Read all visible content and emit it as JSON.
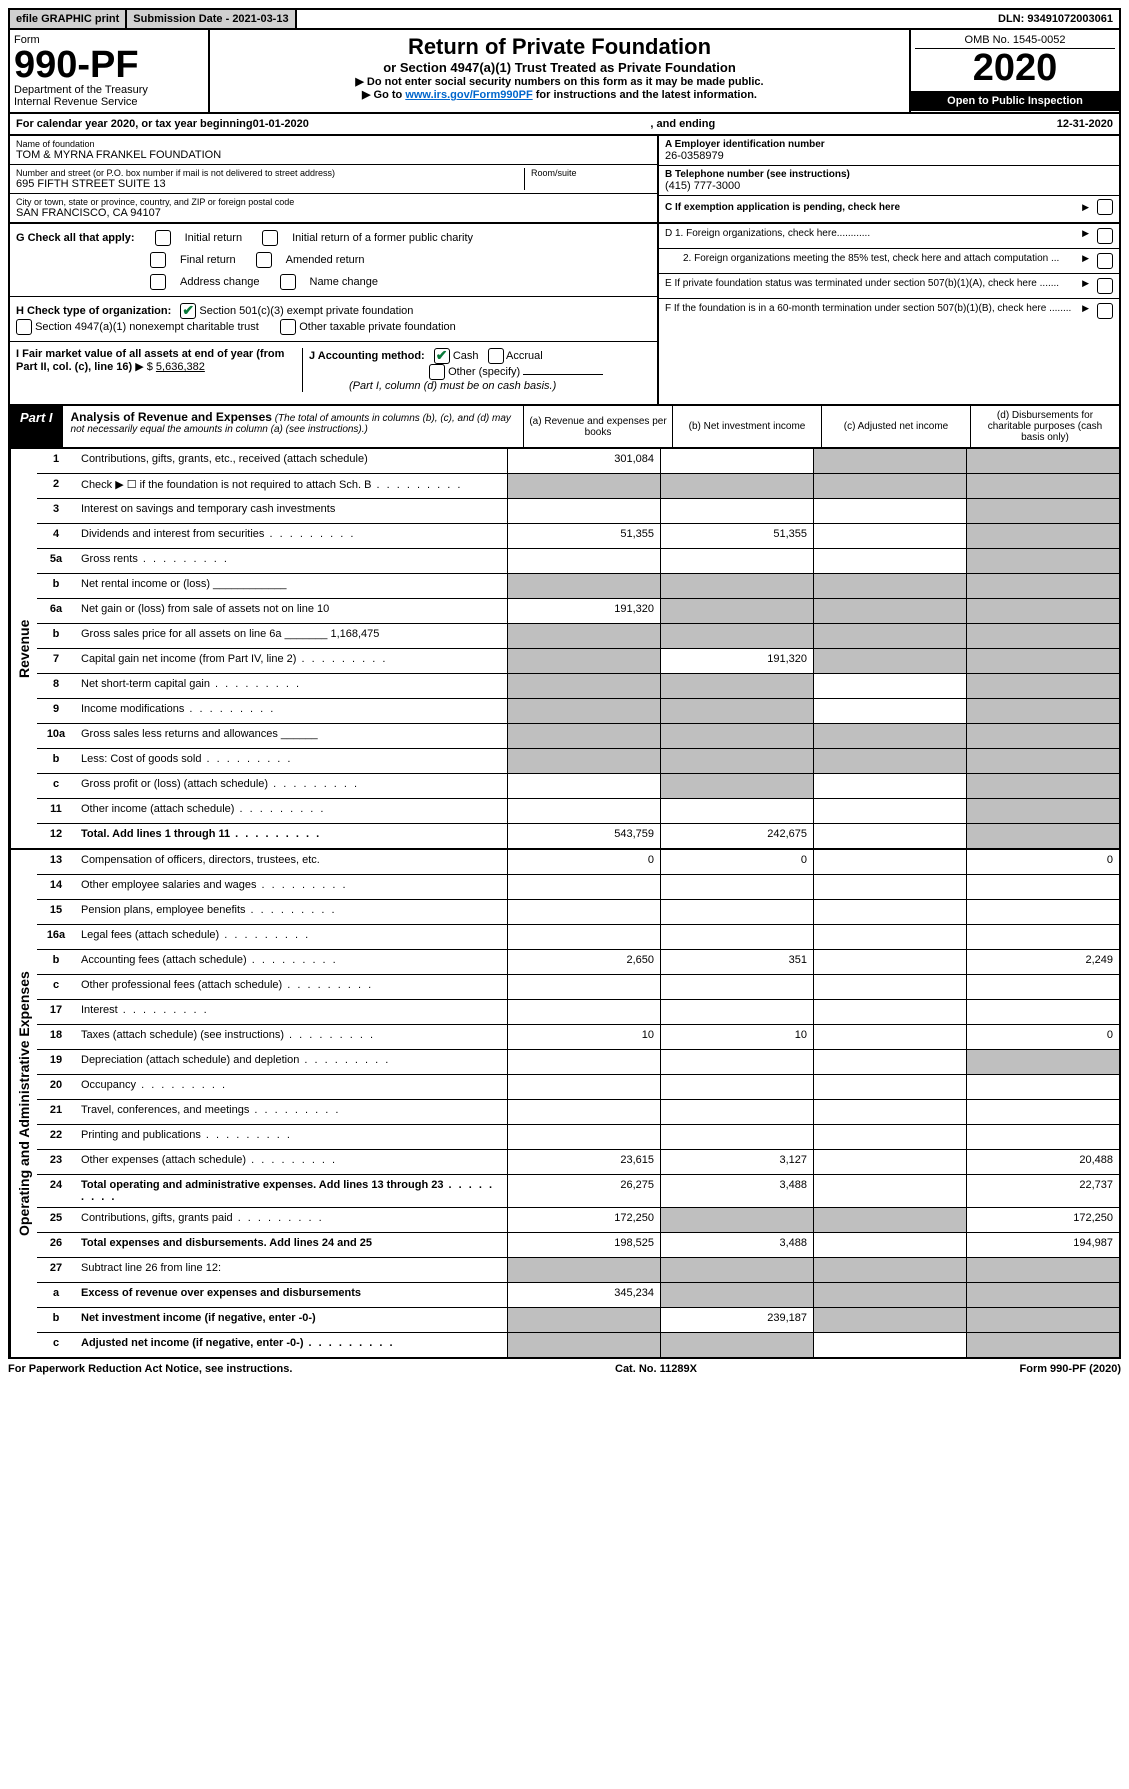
{
  "topbar": {
    "efile": "efile GRAPHIC print",
    "sub_label": "Submission Date - 2021-03-13",
    "dln": "DLN: 93491072003061"
  },
  "header": {
    "form_word": "Form",
    "form_num": "990-PF",
    "dept": "Department of the Treasury",
    "irs": "Internal Revenue Service",
    "title": "Return of Private Foundation",
    "subtitle": "or Section 4947(a)(1) Trust Treated as Private Foundation",
    "instruct1": "▶ Do not enter social security numbers on this form as it may be made public.",
    "instruct2_pre": "▶ Go to ",
    "instruct2_link": "www.irs.gov/Form990PF",
    "instruct2_post": " for instructions and the latest information.",
    "omb": "OMB No. 1545-0052",
    "year": "2020",
    "open": "Open to Public Inspection"
  },
  "calendar": {
    "pre": "For calendar year 2020, or tax year beginning ",
    "begin": "01-01-2020",
    "mid": " , and ending ",
    "end": "12-31-2020"
  },
  "id": {
    "name_label": "Name of foundation",
    "name": "TOM & MYRNA FRANKEL FOUNDATION",
    "addr_label": "Number and street (or P.O. box number if mail is not delivered to street address)",
    "addr": "695 FIFTH STREET SUITE 13",
    "room_label": "Room/suite",
    "city_label": "City or town, state or province, country, and ZIP or foreign postal code",
    "city": "SAN FRANCISCO, CA  94107",
    "a_label": "A Employer identification number",
    "a_val": "26-0358979",
    "b_label": "B Telephone number (see instructions)",
    "b_val": "(415) 777-3000",
    "c_label": "C  If exemption application is pending, check here"
  },
  "g": {
    "label": "G Check all that apply:",
    "initial": "Initial return",
    "initial_former": "Initial return of a former public charity",
    "final": "Final return",
    "amended": "Amended return",
    "address": "Address change",
    "name_change": "Name change"
  },
  "h": {
    "label": "H Check type of organization:",
    "sec501": "Section 501(c)(3) exempt private foundation",
    "sec4947": "Section 4947(a)(1) nonexempt charitable trust",
    "other_tax": "Other taxable private foundation"
  },
  "i": {
    "label": "I Fair market value of all assets at end of year (from Part II, col. (c), line 16)",
    "arrow": "▶ $",
    "val": "5,636,382"
  },
  "j": {
    "label": "J Accounting method:",
    "cash": "Cash",
    "accrual": "Accrual",
    "other": "Other (specify)",
    "note": "(Part I, column (d) must be on cash basis.)"
  },
  "right_checks": {
    "d1": "D 1. Foreign organizations, check here............",
    "d2": "2. Foreign organizations meeting the 85% test, check here and attach computation ...",
    "e": "E  If private foundation status was terminated under section 507(b)(1)(A), check here .......",
    "f": "F  If the foundation is in a 60-month termination under section 507(b)(1)(B), check here ........"
  },
  "part1": {
    "label": "Part I",
    "title": "Analysis of Revenue and Expenses",
    "note": "(The total of amounts in columns (b), (c), and (d) may not necessarily equal the amounts in column (a) (see instructions).)",
    "col_a": "(a) Revenue and expenses per books",
    "col_b": "(b) Net investment income",
    "col_c": "(c) Adjusted net income",
    "col_d": "(d) Disbursements for charitable purposes (cash basis only)"
  },
  "sides": {
    "revenue": "Revenue",
    "expenses": "Operating and Administrative Expenses"
  },
  "rows": [
    {
      "n": "1",
      "d": "Contributions, gifts, grants, etc., received (attach schedule)",
      "a": "301,084",
      "b": "",
      "c": "g",
      "dd": "g"
    },
    {
      "n": "2",
      "d": "Check ▶ ☐ if the foundation is not required to attach Sch. B",
      "dots": true,
      "a": "",
      "b": "g",
      "c": "g",
      "dd": "g",
      "aGrey": true
    },
    {
      "n": "3",
      "d": "Interest on savings and temporary cash investments",
      "a": "",
      "b": "",
      "c": "",
      "dd": "g"
    },
    {
      "n": "4",
      "d": "Dividends and interest from securities",
      "dots": true,
      "a": "51,355",
      "b": "51,355",
      "c": "",
      "dd": "g"
    },
    {
      "n": "5a",
      "d": "Gross rents",
      "dots": true,
      "a": "",
      "b": "",
      "c": "",
      "dd": "g"
    },
    {
      "n": "b",
      "d": "Net rental income or (loss)  ____________",
      "a": "g",
      "b": "g",
      "c": "g",
      "dd": "g",
      "aGrey": true
    },
    {
      "n": "6a",
      "d": "Net gain or (loss) from sale of assets not on line 10",
      "a": "191,320",
      "b": "g",
      "c": "g",
      "dd": "g"
    },
    {
      "n": "b",
      "d": "Gross sales price for all assets on line 6a _______ 1,168,475",
      "a": "g",
      "b": "g",
      "c": "g",
      "dd": "g",
      "aGrey": true
    },
    {
      "n": "7",
      "d": "Capital gain net income (from Part IV, line 2)",
      "dots": true,
      "a": "g",
      "b": "191,320",
      "c": "g",
      "dd": "g",
      "aGrey": true
    },
    {
      "n": "8",
      "d": "Net short-term capital gain",
      "dots": true,
      "a": "g",
      "b": "g",
      "c": "",
      "dd": "g",
      "aGrey": true
    },
    {
      "n": "9",
      "d": "Income modifications",
      "dots": true,
      "a": "g",
      "b": "g",
      "c": "",
      "dd": "g",
      "aGrey": true
    },
    {
      "n": "10a",
      "d": "Gross sales less returns and allowances  ______",
      "a": "g",
      "b": "g",
      "c": "g",
      "dd": "g",
      "aGrey": true
    },
    {
      "n": "b",
      "d": "Less: Cost of goods sold",
      "dots": true,
      "a": "g",
      "b": "g",
      "c": "g",
      "dd": "g",
      "aGrey": true
    },
    {
      "n": "c",
      "d": "Gross profit or (loss) (attach schedule)",
      "dots": true,
      "a": "",
      "b": "g",
      "c": "",
      "dd": "g"
    },
    {
      "n": "11",
      "d": "Other income (attach schedule)",
      "dots": true,
      "a": "",
      "b": "",
      "c": "",
      "dd": "g"
    },
    {
      "n": "12",
      "d": "Total. Add lines 1 through 11",
      "dots": true,
      "bold": true,
      "a": "543,759",
      "b": "242,675",
      "c": "",
      "dd": "g"
    }
  ],
  "exp_rows": [
    {
      "n": "13",
      "d": "Compensation of officers, directors, trustees, etc.",
      "a": "0",
      "b": "0",
      "c": "",
      "dd": "0"
    },
    {
      "n": "14",
      "d": "Other employee salaries and wages",
      "dots": true,
      "a": "",
      "b": "",
      "c": "",
      "dd": ""
    },
    {
      "n": "15",
      "d": "Pension plans, employee benefits",
      "dots": true,
      "a": "",
      "b": "",
      "c": "",
      "dd": ""
    },
    {
      "n": "16a",
      "d": "Legal fees (attach schedule)",
      "dots": true,
      "a": "",
      "b": "",
      "c": "",
      "dd": ""
    },
    {
      "n": "b",
      "d": "Accounting fees (attach schedule)",
      "dots": true,
      "a": "2,650",
      "b": "351",
      "c": "",
      "dd": "2,249"
    },
    {
      "n": "c",
      "d": "Other professional fees (attach schedule)",
      "dots": true,
      "a": "",
      "b": "",
      "c": "",
      "dd": ""
    },
    {
      "n": "17",
      "d": "Interest",
      "dots": true,
      "a": "",
      "b": "",
      "c": "",
      "dd": ""
    },
    {
      "n": "18",
      "d": "Taxes (attach schedule) (see instructions)",
      "dots": true,
      "a": "10",
      "b": "10",
      "c": "",
      "dd": "0"
    },
    {
      "n": "19",
      "d": "Depreciation (attach schedule) and depletion",
      "dots": true,
      "a": "",
      "b": "",
      "c": "",
      "dd": "g"
    },
    {
      "n": "20",
      "d": "Occupancy",
      "dots": true,
      "a": "",
      "b": "",
      "c": "",
      "dd": ""
    },
    {
      "n": "21",
      "d": "Travel, conferences, and meetings",
      "dots": true,
      "a": "",
      "b": "",
      "c": "",
      "dd": ""
    },
    {
      "n": "22",
      "d": "Printing and publications",
      "dots": true,
      "a": "",
      "b": "",
      "c": "",
      "dd": ""
    },
    {
      "n": "23",
      "d": "Other expenses (attach schedule)",
      "dots": true,
      "a": "23,615",
      "b": "3,127",
      "c": "",
      "dd": "20,488"
    },
    {
      "n": "24",
      "d": "Total operating and administrative expenses. Add lines 13 through 23",
      "dots": true,
      "bold": true,
      "a": "26,275",
      "b": "3,488",
      "c": "",
      "dd": "22,737"
    },
    {
      "n": "25",
      "d": "Contributions, gifts, grants paid",
      "dots": true,
      "a": "172,250",
      "b": "g",
      "c": "g",
      "dd": "172,250"
    },
    {
      "n": "26",
      "d": "Total expenses and disbursements. Add lines 24 and 25",
      "bold": true,
      "a": "198,525",
      "b": "3,488",
      "c": "",
      "dd": "194,987"
    },
    {
      "n": "27",
      "d": "Subtract line 26 from line 12:",
      "a": "g",
      "b": "g",
      "c": "g",
      "dd": "g",
      "aGrey": true
    },
    {
      "n": "a",
      "d": "Excess of revenue over expenses and disbursements",
      "bold": true,
      "a": "345,234",
      "b": "g",
      "c": "g",
      "dd": "g"
    },
    {
      "n": "b",
      "d": "Net investment income (if negative, enter -0-)",
      "bold": true,
      "a": "g",
      "b": "239,187",
      "c": "g",
      "dd": "g",
      "aGrey": true
    },
    {
      "n": "c",
      "d": "Adjusted net income (if negative, enter -0-)",
      "dots": true,
      "bold": true,
      "a": "g",
      "b": "g",
      "c": "",
      "dd": "g",
      "aGrey": true
    }
  ],
  "footer": {
    "left": "For Paperwork Reduction Act Notice, see instructions.",
    "mid": "Cat. No. 11289X",
    "right": "Form 990-PF (2020)"
  }
}
